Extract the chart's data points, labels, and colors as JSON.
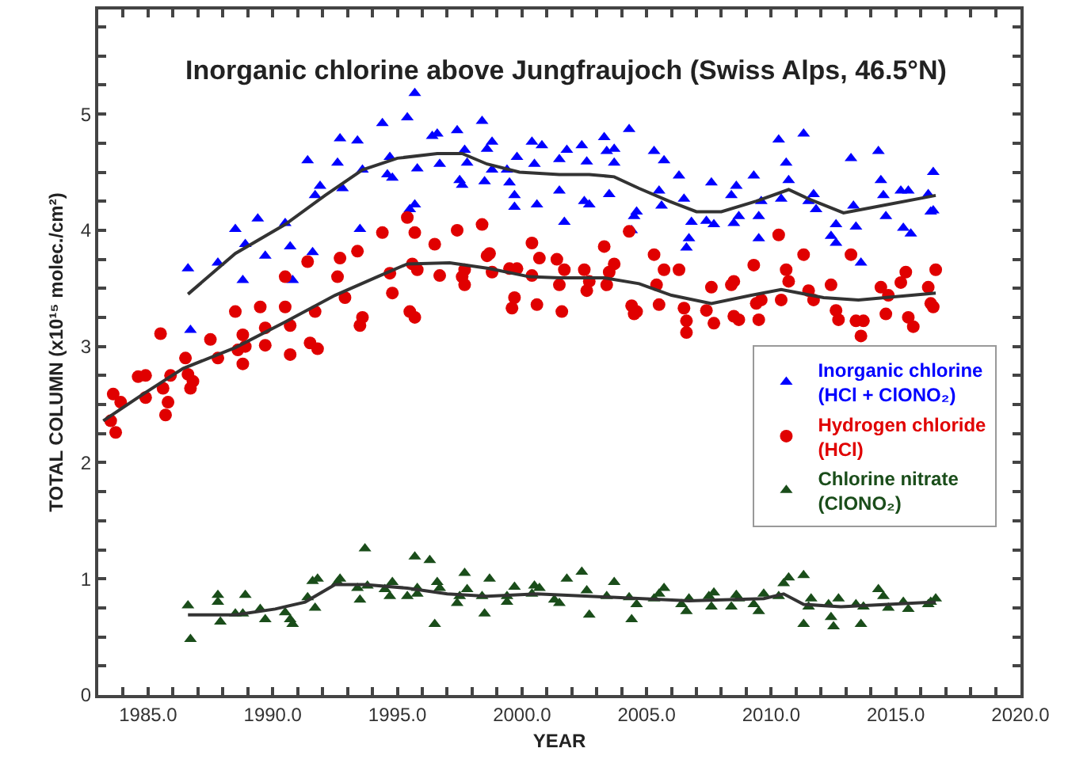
{
  "chart_data": {
    "type": "scatter",
    "title": "Inorganic chlorine above Jungfraujoch (Swiss Alps, 46.5°N)",
    "xlabel": "YEAR",
    "ylabel": "TOTAL COLUMN (x10¹⁵ molec./cm²)",
    "xlim": [
      1983,
      2020
    ],
    "ylim": [
      0,
      5.9
    ],
    "xticks": [
      {
        "value": 1984,
        "label": null
      },
      {
        "value": 1985,
        "label": "1985.0"
      },
      {
        "value": 1986,
        "label": null
      },
      {
        "value": 1987,
        "label": null
      },
      {
        "value": 1988,
        "label": null
      },
      {
        "value": 1989,
        "label": null
      },
      {
        "value": 1990,
        "label": "1990.0"
      },
      {
        "value": 1991,
        "label": null
      },
      {
        "value": 1992,
        "label": null
      },
      {
        "value": 1993,
        "label": null
      },
      {
        "value": 1994,
        "label": null
      },
      {
        "value": 1995,
        "label": "1995.0"
      },
      {
        "value": 1996,
        "label": null
      },
      {
        "value": 1997,
        "label": null
      },
      {
        "value": 1998,
        "label": null
      },
      {
        "value": 1999,
        "label": null
      },
      {
        "value": 2000,
        "label": "2000.0"
      },
      {
        "value": 2001,
        "label": null
      },
      {
        "value": 2002,
        "label": null
      },
      {
        "value": 2003,
        "label": null
      },
      {
        "value": 2004,
        "label": null
      },
      {
        "value": 2005,
        "label": "2005.0"
      },
      {
        "value": 2006,
        "label": null
      },
      {
        "value": 2007,
        "label": null
      },
      {
        "value": 2008,
        "label": null
      },
      {
        "value": 2009,
        "label": null
      },
      {
        "value": 2010,
        "label": "2010.0"
      },
      {
        "value": 2011,
        "label": null
      },
      {
        "value": 2012,
        "label": null
      },
      {
        "value": 2013,
        "label": null
      },
      {
        "value": 2014,
        "label": null
      },
      {
        "value": 2015,
        "label": "2015.0"
      },
      {
        "value": 2016,
        "label": null
      },
      {
        "value": 2017,
        "label": null
      },
      {
        "value": 2018,
        "label": null
      },
      {
        "value": 2019,
        "label": null
      },
      {
        "value": 2020,
        "label": "2020.0"
      }
    ],
    "yticks": [
      0,
      {
        "value": 0.25,
        "label": null
      },
      {
        "value": 0.5,
        "label": null
      },
      {
        "value": 0.75,
        "label": null
      },
      1,
      {
        "value": 1.25,
        "label": null
      },
      {
        "value": 1.5,
        "label": null
      },
      {
        "value": 1.75,
        "label": null
      },
      2,
      {
        "value": 2.25,
        "label": null
      },
      {
        "value": 2.5,
        "label": null
      },
      {
        "value": 2.75,
        "label": null
      },
      3,
      {
        "value": 3.25,
        "label": null
      },
      {
        "value": 3.5,
        "label": null
      },
      {
        "value": 3.75,
        "label": null
      },
      4,
      {
        "value": 4.25,
        "label": null
      },
      {
        "value": 4.5,
        "label": null
      },
      {
        "value": 4.75,
        "label": null
      },
      5,
      {
        "value": 5.25,
        "label": null
      },
      {
        "value": 5.5,
        "label": null
      },
      {
        "value": 5.75,
        "label": null
      }
    ],
    "legend": "right",
    "series": [
      {
        "name": "Inorganic chlorine\n(HCl + ClONO₂)",
        "color": "#0000ff",
        "marker": "triangle",
        "x": [
          1986.6,
          1986.7,
          1987.8,
          1988.5,
          1988.9,
          1988.8,
          1989.4,
          1989.7,
          1990.5,
          1990.7,
          1990.8,
          1991.4,
          1991.6,
          1991.7,
          1991.9,
          1992.6,
          1992.7,
          1992.8,
          1993.4,
          1993.5,
          1993.6,
          1994.4,
          1994.6,
          1994.7,
          1994.8,
          1995.4,
          1995.5,
          1995.7,
          1995.7,
          1995.8,
          1996.4,
          1996.6,
          1996.7,
          1997.4,
          1997.5,
          1997.6,
          1997.7,
          1997.8,
          1998.4,
          1998.5,
          1998.6,
          1998.8,
          1998.8,
          1999.4,
          1999.5,
          1999.7,
          1999.7,
          1999.8,
          2000.4,
          2000.5,
          2000.6,
          2000.8,
          2001.5,
          2001.5,
          2001.7,
          2001.8,
          2002.4,
          2002.6,
          2002.5,
          2002.7,
          2003.3,
          2003.4,
          2003.5,
          2003.7,
          2003.7,
          2004.3,
          2004.4,
          2004.5,
          2004.6,
          2005.3,
          2005.5,
          2005.6,
          2005.7,
          2006.3,
          2006.5,
          2006.6,
          2006.7,
          2006.8,
          2007.4,
          2007.6,
          2007.7,
          2008.4,
          2008.5,
          2008.6,
          2008.7,
          2009.3,
          2009.5,
          2009.5,
          2009.6,
          2010.3,
          2010.4,
          2010.6,
          2010.7,
          2011.3,
          2011.5,
          2011.7,
          2011.8,
          2012.4,
          2012.6,
          2012.6,
          2013.2,
          2013.3,
          2013.4,
          2013.6,
          2014.3,
          2014.4,
          2014.5,
          2014.6,
          2015.2,
          2015.3,
          2015.5,
          2015.6,
          2016.3,
          2016.4,
          2016.5,
          2016.5
        ],
        "values": [
          3.67,
          3.14,
          3.72,
          4.01,
          3.88,
          3.57,
          4.1,
          3.78,
          4.06,
          3.86,
          3.57,
          4.6,
          3.81,
          4.3,
          4.38,
          4.58,
          4.79,
          4.36,
          4.77,
          4.01,
          4.52,
          4.92,
          4.48,
          4.63,
          4.45,
          4.97,
          4.18,
          5.18,
          4.22,
          4.53,
          4.81,
          4.83,
          4.57,
          4.86,
          4.43,
          4.39,
          4.69,
          4.58,
          4.94,
          4.42,
          4.7,
          4.76,
          4.52,
          4.52,
          4.41,
          4.2,
          4.3,
          4.63,
          4.76,
          4.57,
          4.22,
          4.73,
          4.61,
          4.34,
          4.07,
          4.69,
          4.73,
          4.59,
          4.25,
          4.22,
          4.8,
          4.68,
          4.31,
          4.58,
          4.7,
          4.87,
          4.0,
          4.12,
          4.16,
          4.68,
          4.34,
          4.21,
          4.6,
          4.47,
          4.27,
          3.85,
          3.93,
          4.07,
          4.08,
          4.41,
          4.05,
          4.3,
          4.06,
          4.38,
          4.12,
          4.47,
          3.93,
          4.12,
          4.25,
          4.78,
          4.27,
          4.58,
          4.43,
          4.83,
          4.25,
          4.31,
          4.18,
          3.95,
          3.89,
          4.05,
          4.62,
          4.21,
          4.03,
          3.72,
          4.68,
          4.43,
          4.3,
          4.12,
          4.34,
          4.02,
          4.34,
          3.97,
          4.31,
          4.16,
          4.5,
          4.17
        ]
      },
      {
        "name": "Hydrogen chloride\n(HCl)",
        "color": "#e00000",
        "marker": "circle",
        "x": [
          1983.5,
          1983.7,
          1983.6,
          1983.9,
          1984.6,
          1984.9,
          1984.9,
          1985.5,
          1985.6,
          1985.7,
          1985.8,
          1985.9,
          1986.5,
          1986.6,
          1986.7,
          1986.8,
          1987.5,
          1987.8,
          1988.5,
          1988.6,
          1988.8,
          1988.8,
          1988.9,
          1989.5,
          1989.7,
          1989.7,
          1990.5,
          1990.5,
          1990.7,
          1990.7,
          1991.4,
          1991.5,
          1991.7,
          1991.8,
          1992.6,
          1992.7,
          1992.9,
          1993.4,
          1993.5,
          1993.6,
          1994.4,
          1994.7,
          1994.8,
          1995.4,
          1995.5,
          1995.6,
          1995.7,
          1995.7,
          1995.8,
          1996.5,
          1996.7,
          1997.4,
          1997.6,
          1997.7,
          1997.7,
          1998.4,
          1998.6,
          1998.7,
          1998.8,
          1999.5,
          1999.6,
          1999.7,
          1999.8,
          2000.4,
          2000.4,
          2000.6,
          2000.7,
          2001.4,
          2001.5,
          2001.6,
          2001.7,
          2002.5,
          2002.6,
          2002.7,
          2003.3,
          2003.4,
          2003.5,
          2003.7,
          2004.3,
          2004.4,
          2004.5,
          2004.6,
          2005.3,
          2005.4,
          2005.5,
          2005.7,
          2006.3,
          2006.5,
          2006.6,
          2006.6,
          2007.4,
          2007.6,
          2007.7,
          2008.4,
          2008.5,
          2008.5,
          2008.7,
          2009.3,
          2009.4,
          2009.5,
          2009.6,
          2010.3,
          2010.4,
          2010.6,
          2010.7,
          2011.3,
          2011.5,
          2011.7,
          2012.4,
          2012.6,
          2012.7,
          2013.2,
          2013.4,
          2013.6,
          2013.7,
          2014.4,
          2014.6,
          2014.7,
          2015.2,
          2015.4,
          2015.5,
          2015.7,
          2016.3,
          2016.4,
          2016.5,
          2016.6
        ],
        "values": [
          2.36,
          2.26,
          2.59,
          2.52,
          2.74,
          2.75,
          2.56,
          3.11,
          2.64,
          2.41,
          2.52,
          2.75,
          2.9,
          2.76,
          2.64,
          2.7,
          3.06,
          2.9,
          3.3,
          2.97,
          3.1,
          2.85,
          3.0,
          3.34,
          3.16,
          3.01,
          3.34,
          3.6,
          3.18,
          2.93,
          3.73,
          3.03,
          3.3,
          2.98,
          3.6,
          3.76,
          3.42,
          3.82,
          3.18,
          3.25,
          3.98,
          3.63,
          3.46,
          4.11,
          3.3,
          3.71,
          3.98,
          3.25,
          3.66,
          3.88,
          3.61,
          4.0,
          3.6,
          3.53,
          3.66,
          4.05,
          3.78,
          3.8,
          3.64,
          3.67,
          3.33,
          3.42,
          3.67,
          3.89,
          3.61,
          3.36,
          3.76,
          3.75,
          3.53,
          3.3,
          3.66,
          3.66,
          3.48,
          3.56,
          3.86,
          3.53,
          3.64,
          3.71,
          3.99,
          3.35,
          3.28,
          3.3,
          3.79,
          3.53,
          3.36,
          3.66,
          3.66,
          3.33,
          3.22,
          3.12,
          3.31,
          3.51,
          3.2,
          3.53,
          3.56,
          3.26,
          3.23,
          3.7,
          3.37,
          3.23,
          3.4,
          3.96,
          3.4,
          3.66,
          3.56,
          3.79,
          3.48,
          3.4,
          3.53,
          3.31,
          3.23,
          3.79,
          3.22,
          3.09,
          3.22,
          3.51,
          3.28,
          3.44,
          3.55,
          3.64,
          3.25,
          3.17,
          3.51,
          3.37,
          3.34,
          3.66
        ]
      },
      {
        "name": "Chlorine nitrate\n(ClONO₂)",
        "color": "#1a4d1a",
        "marker": "triangle",
        "x": [
          1986.6,
          1986.7,
          1987.8,
          1987.8,
          1987.9,
          1988.5,
          1988.9,
          1988.8,
          1989.5,
          1989.7,
          1990.5,
          1990.7,
          1990.8,
          1991.4,
          1991.6,
          1991.7,
          1991.8,
          1992.6,
          1992.7,
          1993.4,
          1993.5,
          1993.7,
          1993.8,
          1994.5,
          1994.7,
          1994.8,
          1995.4,
          1995.7,
          1995.8,
          1995.8,
          1996.3,
          1996.5,
          1996.6,
          1996.7,
          1997.4,
          1997.5,
          1997.7,
          1997.8,
          1998.4,
          1998.5,
          1998.7,
          1999.4,
          1999.4,
          1999.7,
          2000.4,
          2000.5,
          2000.7,
          2001.3,
          2001.5,
          2001.8,
          2002.4,
          2002.6,
          2002.7,
          2003.4,
          2003.7,
          2004.3,
          2004.4,
          2004.6,
          2005.3,
          2005.5,
          2005.7,
          2006.4,
          2006.6,
          2006.7,
          2007.5,
          2007.6,
          2007.7,
          2008.4,
          2008.6,
          2008.7,
          2009.3,
          2009.5,
          2009.7,
          2010.3,
          2010.5,
          2010.7,
          2011.3,
          2011.3,
          2011.5,
          2011.6,
          2012.3,
          2012.4,
          2012.5,
          2012.7,
          2013.4,
          2013.6,
          2013.7,
          2014.3,
          2014.5,
          2014.7,
          2015.3,
          2015.5,
          2016.3,
          2016.4,
          2016.6
        ],
        "values": [
          0.77,
          0.48,
          0.86,
          0.8,
          0.63,
          0.7,
          0.86,
          0.7,
          0.74,
          0.65,
          0.71,
          0.65,
          0.61,
          0.84,
          0.98,
          0.75,
          1.0,
          0.97,
          1.0,
          0.92,
          0.82,
          1.26,
          0.94,
          0.91,
          0.85,
          0.97,
          0.85,
          1.19,
          0.92,
          0.87,
          1.16,
          0.61,
          0.97,
          0.92,
          0.79,
          0.85,
          1.05,
          0.91,
          0.85,
          0.7,
          1.0,
          0.8,
          0.85,
          0.93,
          0.87,
          0.94,
          0.92,
          0.82,
          0.79,
          1.0,
          1.06,
          0.9,
          0.69,
          0.85,
          0.97,
          0.84,
          0.65,
          0.78,
          0.83,
          0.87,
          0.92,
          0.78,
          0.72,
          0.83,
          0.85,
          0.76,
          0.88,
          0.76,
          0.86,
          0.83,
          0.78,
          0.72,
          0.87,
          0.85,
          0.96,
          1.01,
          1.03,
          0.61,
          0.76,
          0.83,
          0.78,
          0.67,
          0.59,
          0.83,
          0.78,
          0.61,
          0.76,
          0.91,
          0.85,
          0.75,
          0.8,
          0.74,
          0.78,
          0.8,
          0.83
        ]
      },
      {
        "type": "line",
        "color": "#333333",
        "marker": "none",
        "x": [
          1986.6,
          1988.5,
          1990.5,
          1992.1,
          1993.6,
          1995.0,
          1996.6,
          1997.6,
          1998.6,
          1999.9,
          2001.5,
          2002.7,
          2003.7,
          2004.7,
          2005.9,
          2007.0,
          2008.0,
          2009.4,
          2010.7,
          2011.5,
          2012.9,
          2013.9,
          2016.6
        ],
        "values": [
          3.45,
          3.8,
          4.05,
          4.3,
          4.52,
          4.62,
          4.66,
          4.66,
          4.57,
          4.5,
          4.48,
          4.48,
          4.46,
          4.36,
          4.25,
          4.16,
          4.16,
          4.25,
          4.35,
          4.27,
          4.15,
          4.19,
          4.3
        ]
      },
      {
        "type": "line",
        "color": "#333333",
        "marker": "none",
        "x": [
          1983.2,
          1984.8,
          1986.4,
          1988.5,
          1990.5,
          1992.5,
          1994.2,
          1995.4,
          1997.1,
          1998.7,
          2000.3,
          2001.5,
          2003.3,
          2004.7,
          2006.0,
          2007.6,
          2009.2,
          2010.4,
          2012.1,
          2013.5,
          2016.6
        ],
        "values": [
          2.36,
          2.59,
          2.81,
          2.99,
          3.21,
          3.44,
          3.6,
          3.71,
          3.72,
          3.67,
          3.6,
          3.59,
          3.59,
          3.54,
          3.44,
          3.37,
          3.44,
          3.49,
          3.42,
          3.4,
          3.46
        ]
      },
      {
        "type": "line",
        "color": "#333333",
        "marker": "none",
        "x": [
          1986.6,
          1988.5,
          1990.1,
          1991.3,
          1992.5,
          1993.7,
          1995.4,
          1997.0,
          1998.6,
          2000.6,
          2002.7,
          2006.7,
          2009.7,
          2010.5,
          2011.3,
          2012.8,
          2016.6
        ],
        "values": [
          0.69,
          0.69,
          0.74,
          0.8,
          0.95,
          0.95,
          0.92,
          0.87,
          0.85,
          0.87,
          0.85,
          0.81,
          0.83,
          0.87,
          0.78,
          0.76,
          0.8
        ]
      }
    ]
  }
}
